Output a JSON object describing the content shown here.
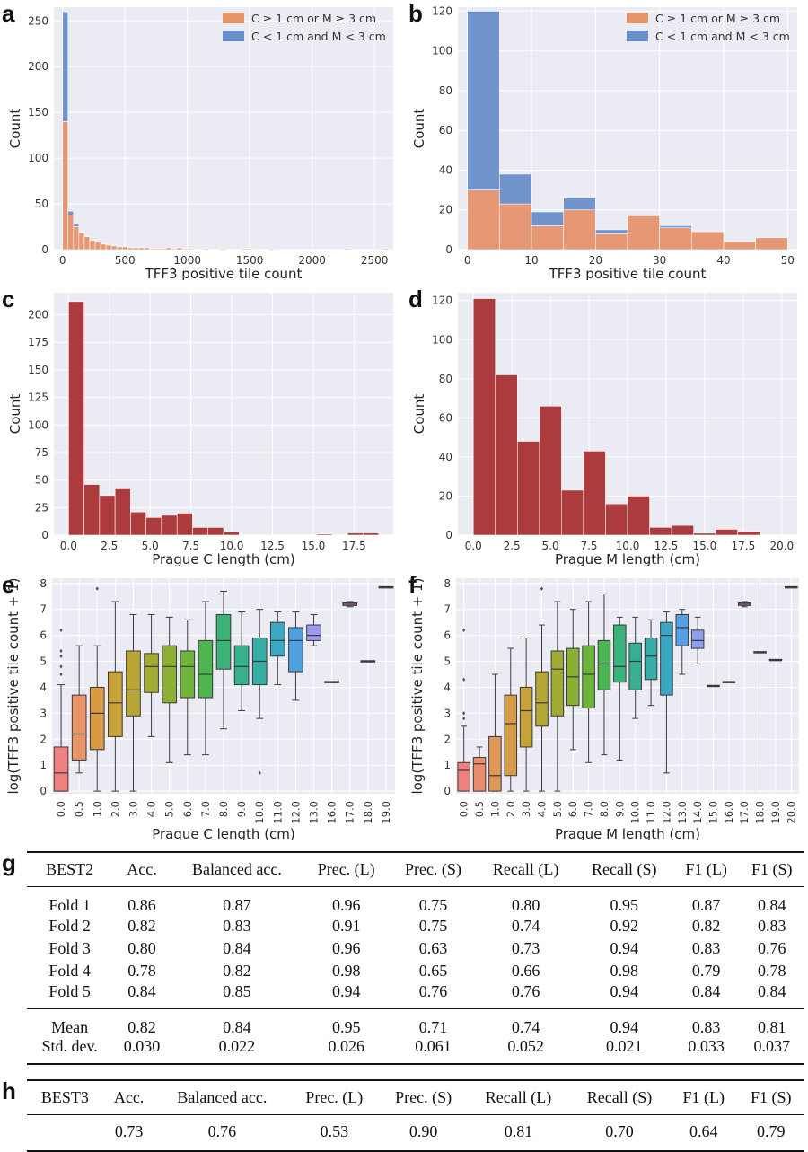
{
  "panels": {
    "a": "a",
    "b": "b",
    "c": "c",
    "d": "d",
    "e": "e",
    "f": "f",
    "g": "g",
    "h": "h"
  },
  "colors": {
    "orange": "#e5946c",
    "blue": "#6a8ec9",
    "red": "#a83232",
    "panel_bg": "#ebebf4",
    "grid": "#ffffff"
  },
  "chart_data": [
    {
      "id": "a",
      "type": "bar",
      "stacked": true,
      "xlabel": "TFF3 positive tile count",
      "ylabel": "Count",
      "xlim": [
        -70,
        2650
      ],
      "ylim": [
        0,
        265
      ],
      "xticks": [
        0,
        500,
        1000,
        1500,
        2000,
        2500
      ],
      "yticks": [
        0,
        50,
        100,
        150,
        200,
        250
      ],
      "legend": {
        "position": "top-right",
        "entries": [
          "C ≥ 1 cm or M ≥ 3 cm",
          "C < 1 cm and M < 3 cm"
        ]
      },
      "bin_width": 43.5,
      "bin_starts": [
        0,
        43.5,
        87,
        130.5,
        174,
        217.5,
        261,
        304.5,
        348,
        391.5,
        435,
        478.5,
        522,
        565.5,
        609,
        652.5,
        696,
        739.5,
        783,
        826.5,
        870,
        913.5,
        957,
        1000.5,
        1044,
        1087.5,
        1131,
        1174.5,
        1218,
        1261.5,
        1305,
        1348.5,
        1392,
        1435.5,
        1479,
        1522.5,
        1566,
        1609.5,
        1653,
        1696.5,
        1740,
        1783.5,
        1827,
        1870.5,
        1914,
        1957.5,
        2001,
        2044.5,
        2088,
        2131.5,
        2175,
        2218.5,
        2262,
        2305.5,
        2349,
        2392.5,
        2436,
        2479.5,
        2523,
        2566.5
      ],
      "series": [
        {
          "name": "C ≥ 1 cm or M ≥ 3 cm",
          "values": [
            140,
            38,
            25,
            18,
            14,
            10,
            8,
            6,
            5,
            4,
            3,
            3,
            2,
            2,
            2,
            2,
            1,
            1,
            1,
            2,
            1,
            2,
            1,
            1,
            0,
            0,
            1,
            0,
            0,
            1,
            0,
            0,
            0,
            1,
            1,
            0,
            0,
            0,
            1,
            0,
            0,
            0,
            0,
            0,
            0,
            0,
            0,
            0,
            0,
            0,
            0,
            0,
            1,
            0,
            0,
            0,
            0,
            0,
            0,
            1
          ]
        },
        {
          "name": "C < 1 cm and M < 3 cm",
          "values": [
            120,
            4,
            3,
            1,
            0,
            0,
            0,
            0,
            0,
            0,
            0,
            0,
            0,
            0,
            0,
            0,
            0,
            0,
            0,
            0,
            0,
            0,
            0,
            0,
            0,
            0,
            0,
            0,
            0,
            0,
            0,
            0,
            0,
            0,
            0,
            0,
            0,
            0,
            0,
            0,
            0,
            0,
            0,
            0,
            0,
            0,
            0,
            0,
            0,
            0,
            0,
            0,
            0,
            0,
            0,
            0,
            0,
            0,
            0,
            0
          ]
        }
      ]
    },
    {
      "id": "b",
      "type": "bar",
      "stacked": true,
      "xlabel": "TFF3 positive tile count",
      "ylabel": "Count",
      "xlim": [
        -1.5,
        51.5
      ],
      "ylim": [
        0,
        122
      ],
      "xticks": [
        0,
        10,
        20,
        30,
        40,
        50
      ],
      "yticks": [
        0,
        20,
        40,
        60,
        80,
        100,
        120
      ],
      "legend": {
        "position": "top-right",
        "entries": [
          "C ≥ 1 cm or M ≥ 3 cm",
          "C < 1 cm and M < 3 cm"
        ]
      },
      "bin_width": 5,
      "bin_starts": [
        0,
        5,
        10,
        15,
        20,
        25,
        30,
        35,
        40,
        45
      ],
      "series": [
        {
          "name": "C ≥ 1 cm or M ≥ 3 cm",
          "values": [
            30,
            23,
            12,
            20,
            8,
            17,
            11,
            9,
            4,
            6
          ]
        },
        {
          "name": "C < 1 cm and M < 3 cm",
          "values": [
            90,
            15,
            7,
            6,
            2,
            0,
            1,
            0,
            0,
            0
          ]
        }
      ]
    },
    {
      "id": "c",
      "type": "bar",
      "xlabel": "Prague C length (cm)",
      "ylabel": "Count",
      "xlim": [
        -0.9,
        19.9
      ],
      "ylim": [
        0,
        220
      ],
      "xticks": [
        0,
        2.5,
        5,
        7.5,
        10,
        12.5,
        15,
        17.5
      ],
      "xticklabels": [
        "0.0",
        "2.5",
        "5.0",
        "7.5",
        "10.0",
        "12.5",
        "15.0",
        "17.5"
      ],
      "yticks": [
        0,
        25,
        50,
        75,
        100,
        125,
        150,
        175,
        200
      ],
      "bin_width": 1.9,
      "bin_starts": [
        0,
        1.9,
        3.8,
        5.7,
        7.6,
        9.5,
        11.4,
        13.3,
        15.2,
        17.1
      ],
      "series": [
        {
          "values": [
            212,
            46,
            36,
            42,
            21,
            16,
            18,
            20,
            7,
            7,
            3,
            0,
            0,
            0,
            0,
            0,
            1,
            0,
            2,
            2
          ]
        }
      ],
      "bins_half": true
    },
    {
      "id": "d",
      "type": "bar",
      "xlabel": "Prague M length (cm)",
      "ylabel": "Count",
      "xlim": [
        -1.0,
        21.0
      ],
      "ylim": [
        0,
        124
      ],
      "xticks": [
        0,
        2.5,
        5,
        7.5,
        10,
        12.5,
        15,
        17.5,
        20
      ],
      "xticklabels": [
        "0.0",
        "2.5",
        "5.0",
        "7.5",
        "10.0",
        "12.5",
        "15.0",
        "17.5",
        "20.0"
      ],
      "yticks": [
        0,
        20,
        40,
        60,
        80,
        100,
        120
      ],
      "bin_width": 1.43,
      "bin_starts": [
        0,
        1.43,
        2.86,
        4.29,
        5.71,
        7.14,
        8.57,
        10.0,
        11.43,
        12.86,
        14.29,
        15.71,
        17.14,
        18.57
      ],
      "series": [
        {
          "values": [
            121,
            82,
            48,
            66,
            23,
            43,
            16,
            20,
            4,
            5,
            1,
            3,
            2,
            0
          ]
        }
      ]
    },
    {
      "id": "e",
      "type": "box",
      "xlabel": "Prague C length (cm)",
      "ylabel": "log(TFF3 positive tile count + 1)",
      "ylim": [
        -0.1,
        8.2
      ],
      "yticks": [
        0,
        1,
        2,
        3,
        4,
        5,
        6,
        7,
        8
      ],
      "categories": [
        "0.0",
        "0.5",
        "1.0",
        "2.0",
        "3.0",
        "4.0",
        "5.0",
        "6.0",
        "7.0",
        "8.0",
        "9.0",
        "10.0",
        "11.0",
        "12.0",
        "13.0",
        "16.0",
        "17.0",
        "18.0",
        "19.0"
      ],
      "box_colors": [
        "#f08080",
        "#e99368",
        "#d99a44",
        "#c9a13a",
        "#b7a635",
        "#a3ab33",
        "#8cb034",
        "#6fb43c",
        "#4fb54e",
        "#3ab376",
        "#37b08f",
        "#38ada3",
        "#3aa9c0",
        "#4fa0e0",
        "#9d9bef",
        "#c08ae8",
        "#d585d8",
        "#e67fc0",
        "#ee82a6"
      ],
      "boxes": [
        {
          "q1": 0.0,
          "med": 0.7,
          "q3": 1.7,
          "lo": 0.0,
          "hi": 4.1,
          "out": [
            4.5,
            4.8,
            5.2,
            5.4,
            6.2
          ]
        },
        {
          "q1": 1.2,
          "med": 2.2,
          "q3": 3.7,
          "lo": 0.7,
          "hi": 5.6,
          "out": []
        },
        {
          "q1": 1.6,
          "med": 3.0,
          "q3": 4.0,
          "lo": 0.0,
          "hi": 5.6,
          "out": [
            7.8
          ]
        },
        {
          "q1": 2.1,
          "med": 3.4,
          "q3": 4.6,
          "lo": 0.0,
          "hi": 7.3,
          "out": []
        },
        {
          "q1": 2.9,
          "med": 3.9,
          "q3": 5.4,
          "lo": 0.0,
          "hi": 6.8,
          "out": []
        },
        {
          "q1": 3.8,
          "med": 4.8,
          "q3": 5.3,
          "lo": 2.1,
          "hi": 6.8,
          "out": []
        },
        {
          "q1": 3.4,
          "med": 4.8,
          "q3": 5.6,
          "lo": 1.1,
          "hi": 6.7,
          "out": []
        },
        {
          "q1": 3.6,
          "med": 4.8,
          "q3": 5.4,
          "lo": 1.4,
          "hi": 6.6,
          "out": []
        },
        {
          "q1": 3.6,
          "med": 4.5,
          "q3": 5.8,
          "lo": 1.4,
          "hi": 7.3,
          "out": []
        },
        {
          "q1": 4.7,
          "med": 5.8,
          "q3": 6.8,
          "lo": 2.4,
          "hi": 7.7,
          "out": []
        },
        {
          "q1": 4.1,
          "med": 4.8,
          "q3": 5.6,
          "lo": 3.1,
          "hi": 6.9,
          "out": []
        },
        {
          "q1": 4.1,
          "med": 5.0,
          "q3": 5.9,
          "lo": 2.8,
          "hi": 7.0,
          "out": [
            0.7
          ]
        },
        {
          "q1": 5.2,
          "med": 5.8,
          "q3": 6.5,
          "lo": 4.1,
          "hi": 6.9,
          "out": []
        },
        {
          "q1": 4.6,
          "med": 5.8,
          "q3": 6.3,
          "lo": 3.5,
          "hi": 6.9,
          "out": []
        },
        {
          "q1": 5.8,
          "med": 6.0,
          "q3": 6.4,
          "lo": 5.6,
          "hi": 6.8,
          "out": []
        },
        {
          "q1": 4.2,
          "med": 4.2,
          "q3": 4.2,
          "lo": 4.2,
          "hi": 4.2,
          "out": []
        },
        {
          "q1": 7.15,
          "med": 7.2,
          "q3": 7.25,
          "lo": 7.1,
          "hi": 7.3,
          "out": []
        },
        {
          "q1": 5.0,
          "med": 5.0,
          "q3": 5.0,
          "lo": 5.0,
          "hi": 5.0,
          "out": []
        },
        {
          "q1": 7.85,
          "med": 7.85,
          "q3": 7.85,
          "lo": 7.85,
          "hi": 7.85,
          "out": []
        }
      ]
    },
    {
      "id": "f",
      "type": "box",
      "xlabel": "Prague M length (cm)",
      "ylabel": "log(TFF3 positive tile count + 1)",
      "ylim": [
        -0.1,
        8.2
      ],
      "yticks": [
        0,
        1,
        2,
        3,
        4,
        5,
        6,
        7,
        8
      ],
      "categories": [
        "0.0",
        "0.5",
        "1.0",
        "2.0",
        "3.0",
        "4.0",
        "5.0",
        "6.0",
        "7.0",
        "8.0",
        "9.0",
        "10.0",
        "11.0",
        "12.0",
        "13.0",
        "14.0",
        "15.0",
        "16.0",
        "17.0",
        "18.0",
        "19.0",
        "20.0"
      ],
      "box_colors": [
        "#f08080",
        "#eb8c6c",
        "#e1965a",
        "#d49d45",
        "#c5a23a",
        "#b4a736",
        "#a0ab33",
        "#89b035",
        "#6cb43d",
        "#4bb552",
        "#3ab37a",
        "#38af93",
        "#39aca8",
        "#3ca7c2",
        "#55a0e2",
        "#8e9ef0",
        "#b18ef0",
        "#c887e3",
        "#db83d0",
        "#e880b8",
        "#ef83a3",
        "#f38591"
      ],
      "boxes": [
        {
          "q1": 0.0,
          "med": 0.8,
          "q3": 1.1,
          "lo": 0.0,
          "hi": 2.5,
          "out": [
            2.8,
            3.0,
            4.3,
            6.2
          ]
        },
        {
          "q1": 0.0,
          "med": 1.05,
          "q3": 1.3,
          "lo": 0.0,
          "hi": 1.7,
          "out": []
        },
        {
          "q1": 0.0,
          "med": 0.6,
          "q3": 2.1,
          "lo": 0.0,
          "hi": 4.5,
          "out": []
        },
        {
          "q1": 0.6,
          "med": 2.6,
          "q3": 3.7,
          "lo": 0.0,
          "hi": 5.5,
          "out": []
        },
        {
          "q1": 1.7,
          "med": 3.1,
          "q3": 4.0,
          "lo": 0.0,
          "hi": 5.9,
          "out": []
        },
        {
          "q1": 2.5,
          "med": 3.4,
          "q3": 4.6,
          "lo": 0.0,
          "hi": 6.4,
          "out": [
            7.8
          ]
        },
        {
          "q1": 2.9,
          "med": 4.7,
          "q3": 5.4,
          "lo": 0.0,
          "hi": 7.3,
          "out": []
        },
        {
          "q1": 3.3,
          "med": 4.4,
          "q3": 5.5,
          "lo": 1.6,
          "hi": 7.0,
          "out": []
        },
        {
          "q1": 3.2,
          "med": 4.5,
          "q3": 5.6,
          "lo": 1.1,
          "hi": 7.3,
          "out": []
        },
        {
          "q1": 3.9,
          "med": 4.9,
          "q3": 5.8,
          "lo": 1.4,
          "hi": 7.6,
          "out": []
        },
        {
          "q1": 4.2,
          "med": 4.8,
          "q3": 6.4,
          "lo": 1.2,
          "hi": 6.7,
          "out": []
        },
        {
          "q1": 3.9,
          "med": 5.0,
          "q3": 5.7,
          "lo": 2.8,
          "hi": 6.7,
          "out": []
        },
        {
          "q1": 4.3,
          "med": 5.2,
          "q3": 5.9,
          "lo": 3.3,
          "hi": 6.6,
          "out": []
        },
        {
          "q1": 3.7,
          "med": 6.0,
          "q3": 6.5,
          "lo": 0.7,
          "hi": 6.9,
          "out": []
        },
        {
          "q1": 5.6,
          "med": 6.3,
          "q3": 6.8,
          "lo": 4.5,
          "hi": 7.0,
          "out": []
        },
        {
          "q1": 5.5,
          "med": 5.8,
          "q3": 6.2,
          "lo": 4.9,
          "hi": 6.7,
          "out": []
        },
        {
          "q1": 4.05,
          "med": 4.05,
          "q3": 4.05,
          "lo": 4.05,
          "hi": 4.05,
          "out": []
        },
        {
          "q1": 4.2,
          "med": 4.2,
          "q3": 4.2,
          "lo": 4.2,
          "hi": 4.2,
          "out": []
        },
        {
          "q1": 7.15,
          "med": 7.2,
          "q3": 7.25,
          "lo": 7.1,
          "hi": 7.3,
          "out": []
        },
        {
          "q1": 5.35,
          "med": 5.35,
          "q3": 5.35,
          "lo": 5.35,
          "hi": 5.35,
          "out": []
        },
        {
          "q1": 5.05,
          "med": 5.05,
          "q3": 5.05,
          "lo": 5.05,
          "hi": 5.05,
          "out": []
        },
        {
          "q1": 7.85,
          "med": 7.85,
          "q3": 7.85,
          "lo": 7.85,
          "hi": 7.85,
          "out": []
        }
      ]
    },
    {
      "id": "g",
      "type": "table",
      "columns": [
        "BEST2",
        "Acc.",
        "Balanced acc.",
        "Prec. (L)",
        "Prec. (S)",
        "Recall (L)",
        "Recall (S)",
        "F1 (L)",
        "F1 (S)"
      ],
      "rows": [
        [
          "Fold 1",
          "0.86",
          "0.87",
          "0.96",
          "0.75",
          "0.80",
          "0.95",
          "0.87",
          "0.84"
        ],
        [
          "Fold 2",
          "0.82",
          "0.83",
          "0.91",
          "0.75",
          "0.74",
          "0.92",
          "0.82",
          "0.83"
        ],
        [
          "Fold 3",
          "0.80",
          "0.84",
          "0.96",
          "0.63",
          "0.73",
          "0.94",
          "0.83",
          "0.76"
        ],
        [
          "Fold 4",
          "0.78",
          "0.82",
          "0.98",
          "0.65",
          "0.66",
          "0.98",
          "0.79",
          "0.78"
        ],
        [
          "Fold 5",
          "0.84",
          "0.85",
          "0.94",
          "0.76",
          "0.76",
          "0.94",
          "0.84",
          "0.84"
        ],
        [
          "Mean",
          "0.82",
          "0.84",
          "0.95",
          "0.71",
          "0.74",
          "0.94",
          "0.83",
          "0.81"
        ],
        [
          "Std. dev.",
          "0.030",
          "0.022",
          "0.026",
          "0.061",
          "0.052",
          "0.021",
          "0.033",
          "0.037"
        ]
      ]
    },
    {
      "id": "h",
      "type": "table",
      "columns": [
        "BEST3",
        "Acc.",
        "Balanced acc.",
        "Prec. (L)",
        "Prec. (S)",
        "Recall (L)",
        "Recall (S)",
        "F1 (L)",
        "F1 (S)"
      ],
      "rows": [
        [
          "",
          "0.73",
          "0.76",
          "0.53",
          "0.90",
          "0.81",
          "0.70",
          "0.64",
          "0.79"
        ]
      ]
    }
  ]
}
